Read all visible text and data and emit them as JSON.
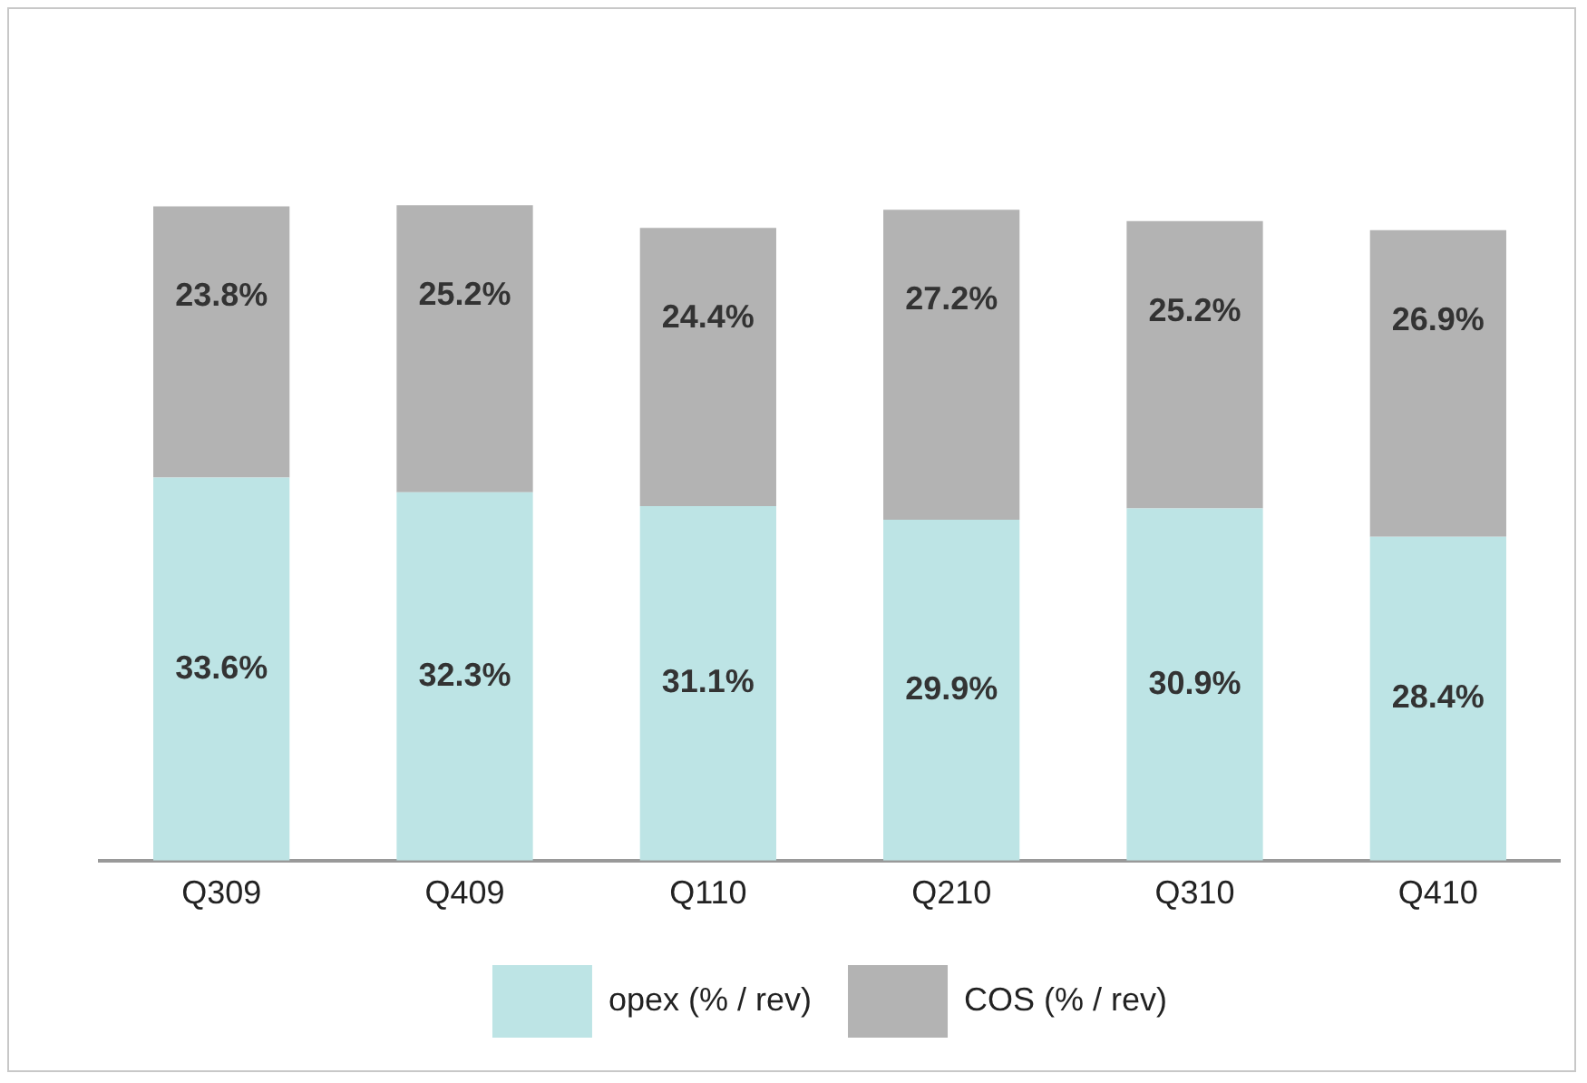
{
  "chart_data": {
    "type": "bar",
    "stacked": true,
    "legend": "bottom",
    "categories": [
      "Q309",
      "Q409",
      "Q110",
      "Q210",
      "Q310",
      "Q410"
    ],
    "series": [
      {
        "name": "opex (% / rev)",
        "color": "#bde4e5",
        "values": [
          33.6,
          32.3,
          31.1,
          29.9,
          30.9,
          28.4
        ],
        "value_labels": [
          "33.6%",
          "32.3%",
          "31.1%",
          "29.9%",
          "30.9%",
          "28.4%"
        ]
      },
      {
        "name": "COS (% / rev)",
        "color": "#b3b3b3",
        "values": [
          23.8,
          25.2,
          24.4,
          27.2,
          25.2,
          26.9
        ],
        "value_labels": [
          "23.8%",
          "25.2%",
          "24.4%",
          "27.2%",
          "25.2%",
          "26.9%"
        ]
      }
    ]
  }
}
